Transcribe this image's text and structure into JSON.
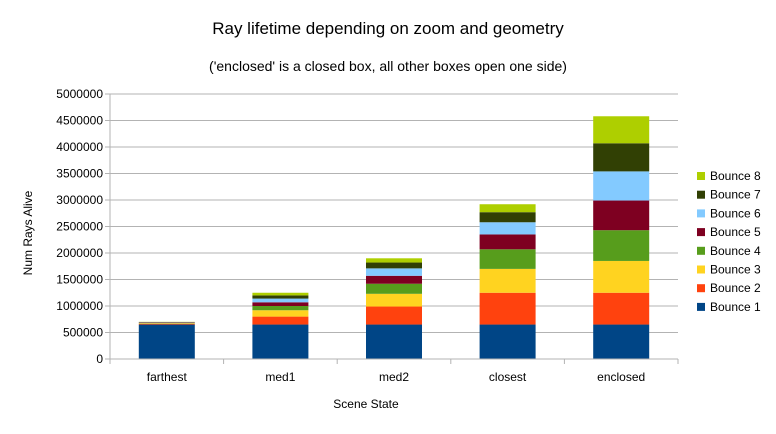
{
  "chart_data": {
    "type": "bar",
    "stacked": true,
    "title": "Ray lifetime depending on zoom and geometry",
    "subtitle": "('enclosed' is a closed box, all other boxes open one side)",
    "xlabel": "Scene State",
    "ylabel": "Num Rays Alive",
    "ylim": [
      0,
      5000000
    ],
    "yticks": [
      0,
      500000,
      1000000,
      1500000,
      2000000,
      2500000,
      3000000,
      3500000,
      4000000,
      4500000,
      5000000
    ],
    "grid": true,
    "legend_position": "right",
    "categories": [
      "farthest",
      "med1",
      "med2",
      "closest",
      "enclosed"
    ],
    "series": [
      {
        "name": "Bounce 1",
        "color": "#004586",
        "values": [
          650000,
          650000,
          650000,
          650000,
          650000
        ]
      },
      {
        "name": "Bounce 2",
        "color": "#ff420e",
        "values": [
          15000,
          150000,
          340000,
          600000,
          600000
        ]
      },
      {
        "name": "Bounce 3",
        "color": "#ffd320",
        "values": [
          10000,
          120000,
          240000,
          450000,
          600000
        ]
      },
      {
        "name": "Bounce 4",
        "color": "#579d1c",
        "values": [
          8000,
          80000,
          190000,
          370000,
          580000
        ]
      },
      {
        "name": "Bounce 5",
        "color": "#7e0021",
        "values": [
          6000,
          70000,
          150000,
          280000,
          560000
        ]
      },
      {
        "name": "Bounce 6",
        "color": "#83caff",
        "values": [
          5000,
          70000,
          140000,
          230000,
          550000
        ]
      },
      {
        "name": "Bounce 7",
        "color": "#314004",
        "values": [
          4000,
          60000,
          110000,
          190000,
          530000
        ]
      },
      {
        "name": "Bounce 8",
        "color": "#aecf00",
        "values": [
          3000,
          50000,
          80000,
          150000,
          510000
        ]
      }
    ]
  }
}
